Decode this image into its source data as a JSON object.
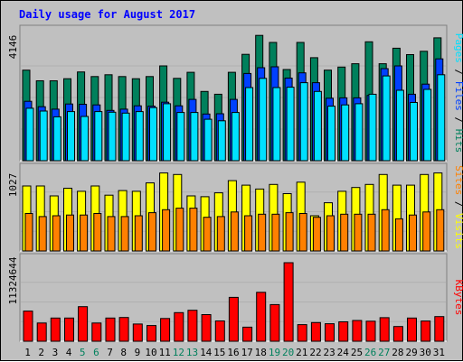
{
  "title": "Daily usage for August 2017",
  "colors": {
    "bg": "#c0c0c0",
    "title": "#0000ff",
    "hits": "#00805c",
    "files": "#0040ff",
    "pages": "#00e0ff",
    "visits": "#ffff00",
    "sites": "#ff8000",
    "kbytes": "#ff0000",
    "weekend_day": "#00805c",
    "weekday": "#000000"
  },
  "chart_data": [
    {
      "type": "bar",
      "panel": "hits-files-pages",
      "ymax_label": "4146",
      "ylim": [
        0,
        4146
      ],
      "right_label": {
        "parts": [
          "Pages",
          "Files",
          "Hits"
        ],
        "separator": " / "
      },
      "categories": [
        "1",
        "2",
        "3",
        "4",
        "5",
        "6",
        "7",
        "8",
        "9",
        "10",
        "11",
        "12",
        "13",
        "14",
        "15",
        "16",
        "17",
        "18",
        "19",
        "20",
        "21",
        "22",
        "23",
        "24",
        "25",
        "26",
        "27",
        "28",
        "29",
        "30",
        "31"
      ],
      "series": [
        {
          "name": "Hits",
          "values": [
            2970,
            2620,
            2620,
            2690,
            2910,
            2760,
            2820,
            2760,
            2690,
            2760,
            3110,
            2700,
            2900,
            2270,
            2180,
            2900,
            3490,
            4110,
            3880,
            2990,
            3880,
            3380,
            2970,
            3070,
            3180,
            3900,
            3180,
            3690,
            3480,
            3590,
            4030
          ]
        },
        {
          "name": "Files",
          "values": [
            1950,
            1770,
            1690,
            1860,
            1850,
            1830,
            1650,
            1690,
            1800,
            1790,
            1920,
            1800,
            2010,
            1530,
            1540,
            2010,
            2860,
            3050,
            3080,
            2710,
            2880,
            2560,
            2050,
            2060,
            2060,
            2140,
            3020,
            3110,
            2180,
            2510,
            3340
          ]
        },
        {
          "name": "Pages",
          "values": [
            1720,
            1630,
            1440,
            1610,
            1450,
            1610,
            1590,
            1560,
            1610,
            1740,
            1870,
            1580,
            1580,
            1360,
            1310,
            1580,
            2400,
            2700,
            2400,
            2410,
            2560,
            2270,
            1790,
            1830,
            1870,
            2180,
            2780,
            2310,
            1910,
            2340,
            2820
          ]
        }
      ]
    },
    {
      "type": "bar",
      "panel": "visits-sites",
      "ymax_label": "1027",
      "ylim": [
        0,
        1027
      ],
      "right_label": {
        "parts": [
          "Sites",
          "Visits"
        ],
        "separator": " / "
      },
      "categories": [
        "1",
        "2",
        "3",
        "4",
        "5",
        "6",
        "7",
        "8",
        "9",
        "10",
        "11",
        "12",
        "13",
        "14",
        "15",
        "16",
        "17",
        "18",
        "19",
        "20",
        "21",
        "22",
        "23",
        "24",
        "25",
        "26",
        "27",
        "28",
        "29",
        "30",
        "31"
      ],
      "series": [
        {
          "name": "Visits",
          "values": [
            850,
            850,
            720,
            820,
            780,
            850,
            730,
            790,
            780,
            890,
            1020,
            1000,
            720,
            710,
            760,
            920,
            860,
            810,
            870,
            750,
            900,
            460,
            630,
            780,
            830,
            870,
            1000,
            860,
            860,
            1000,
            1020
          ]
        },
        {
          "name": "Sites",
          "values": [
            490,
            450,
            460,
            470,
            470,
            490,
            450,
            450,
            460,
            500,
            540,
            560,
            560,
            440,
            450,
            510,
            460,
            480,
            480,
            500,
            490,
            440,
            460,
            480,
            480,
            480,
            540,
            420,
            470,
            510,
            540
          ]
        }
      ]
    },
    {
      "type": "bar",
      "panel": "kbytes",
      "ymax_label": "11324644",
      "ylim": [
        0,
        11324644
      ],
      "right_label": {
        "parts": [
          "KBytes"
        ],
        "separator": ""
      },
      "categories": [
        "1",
        "2",
        "3",
        "4",
        "5",
        "6",
        "7",
        "8",
        "9",
        "10",
        "11",
        "12",
        "13",
        "14",
        "15",
        "16",
        "17",
        "18",
        "19",
        "20",
        "21",
        "22",
        "23",
        "24",
        "25",
        "26",
        "27",
        "28",
        "29",
        "30",
        "31"
      ],
      "series": [
        {
          "name": "KBytes",
          "values": [
            4350,
            2630,
            3350,
            3350,
            4990,
            2630,
            3350,
            3420,
            2490,
            2260,
            3280,
            4130,
            4470,
            3840,
            2930,
            6330,
            2030,
            7050,
            5280,
            11320,
            2390,
            2690,
            2530,
            2800,
            3000,
            2890,
            3400,
            2120,
            3350,
            2910,
            3560
          ]
        }
      ]
    }
  ],
  "x_axis": {
    "days": [
      "1",
      "2",
      "3",
      "4",
      "5",
      "6",
      "7",
      "8",
      "9",
      "10",
      "11",
      "12",
      "13",
      "14",
      "15",
      "16",
      "17",
      "18",
      "19",
      "20",
      "21",
      "22",
      "23",
      "24",
      "25",
      "26",
      "27",
      "28",
      "29",
      "30",
      "31"
    ],
    "weekend": [
      5,
      6,
      12,
      13,
      19,
      20,
      26,
      27
    ]
  }
}
